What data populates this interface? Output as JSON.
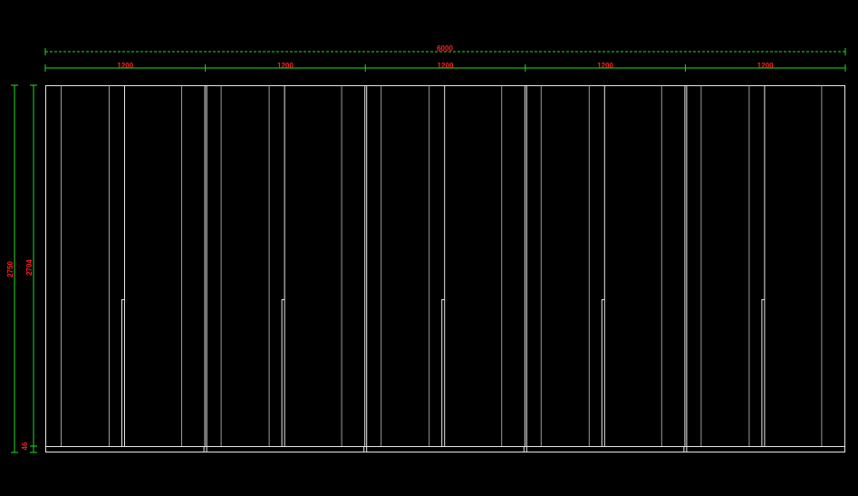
{
  "dimensions": {
    "overall_width": "6000",
    "panel_widths": [
      "1200",
      "1200",
      "1200",
      "1200",
      "1200"
    ],
    "overall_height": "2750",
    "panel_height": "2704",
    "base_height": "46"
  }
}
